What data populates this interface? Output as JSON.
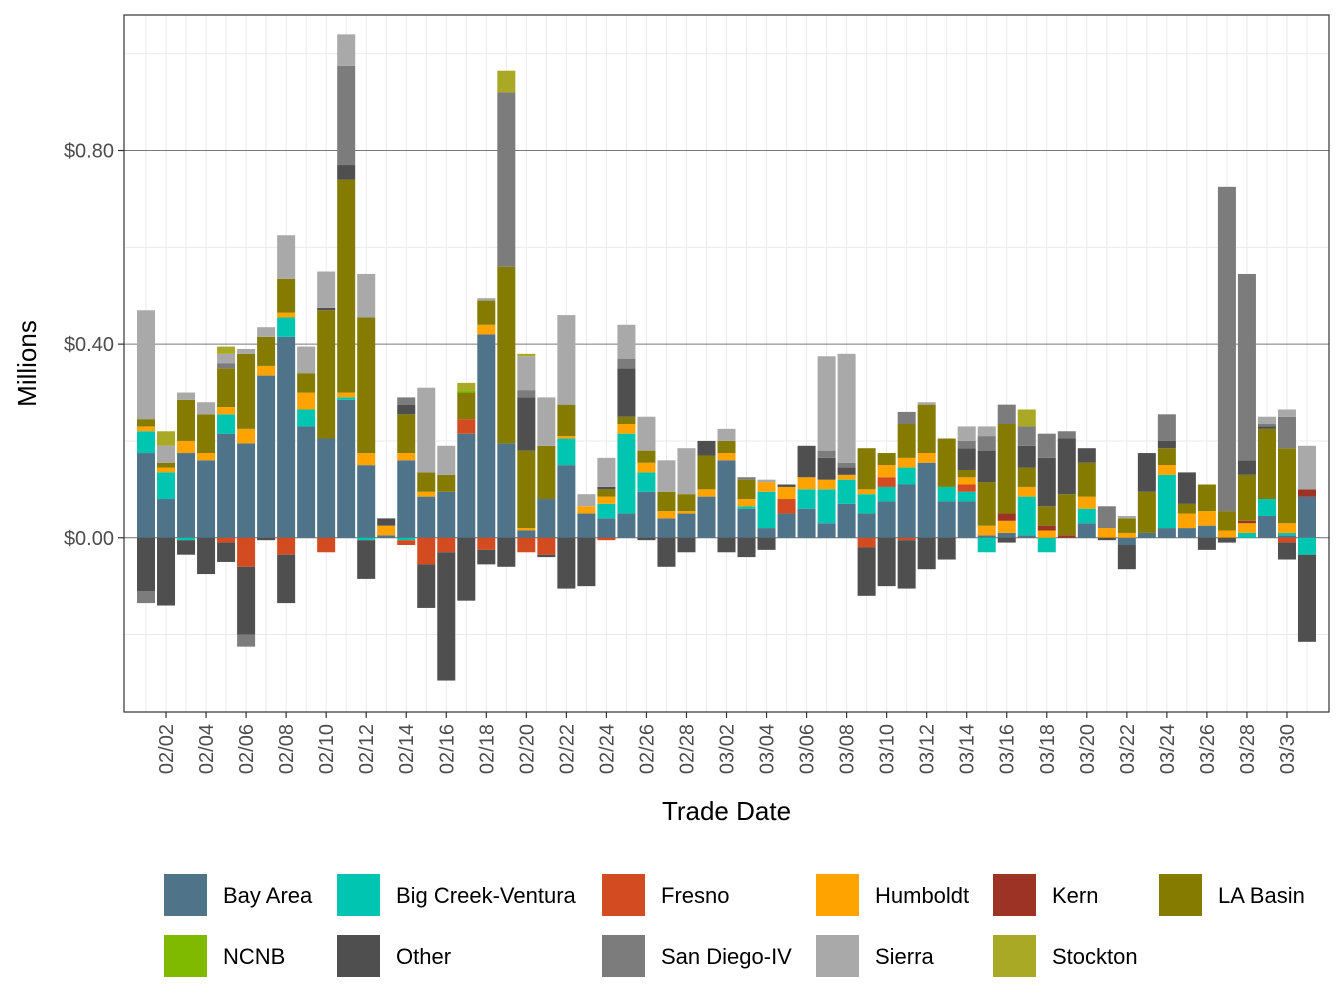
{
  "chart_data": {
    "type": "bar",
    "stacked": true,
    "title": "",
    "xlabel": "Trade Date",
    "ylabel": "Millions",
    "ylim": [
      -0.36,
      1.08
    ],
    "y_ticks": [
      0,
      0.4,
      0.8
    ],
    "y_tick_labels": [
      "$0.00",
      "$0.40",
      "$0.80"
    ],
    "grid": true,
    "legend_position": "bottom",
    "x_tick_labels": [
      "02/02",
      "02/04",
      "02/06",
      "02/08",
      "02/10",
      "02/12",
      "02/14",
      "02/16",
      "02/18",
      "02/20",
      "02/22",
      "02/24",
      "02/26",
      "02/28",
      "03/02",
      "03/04",
      "03/06",
      "03/08",
      "03/10",
      "03/12",
      "03/14",
      "03/16",
      "03/18",
      "03/20",
      "03/22",
      "03/24",
      "03/26",
      "03/28",
      "03/30"
    ],
    "categories": [
      "02/01",
      "02/02",
      "02/03",
      "02/04",
      "02/05",
      "02/06",
      "02/07",
      "02/08",
      "02/09",
      "02/10",
      "02/11",
      "02/12",
      "02/13",
      "02/14",
      "02/15",
      "02/16",
      "02/17",
      "02/18",
      "02/19",
      "02/20",
      "02/21",
      "02/22",
      "02/23",
      "02/24",
      "02/25",
      "02/26",
      "02/27",
      "02/28",
      "03/01",
      "03/02",
      "03/03",
      "03/04",
      "03/05",
      "03/06",
      "03/07",
      "03/08",
      "03/09",
      "03/10",
      "03/11",
      "03/12",
      "03/13",
      "03/14",
      "03/15",
      "03/16",
      "03/17",
      "03/18",
      "03/19",
      "03/20",
      "03/21",
      "03/22",
      "03/23",
      "03/24",
      "03/25",
      "03/26",
      "03/27",
      "03/28",
      "03/29",
      "03/30",
      "03/31"
    ],
    "series": [
      {
        "name": "Bay Area",
        "color": "#4f7489",
        "values": [
          0.175,
          0.08,
          0.175,
          0.16,
          0.215,
          0.195,
          0.335,
          0.415,
          0.23,
          0.205,
          0.285,
          0.15,
          0.005,
          0.16,
          0.085,
          0.095,
          0.215,
          0.42,
          0.195,
          0.015,
          0.08,
          0.15,
          0.05,
          0.04,
          0.05,
          0.095,
          0.04,
          0.05,
          0.085,
          0.16,
          0.06,
          0.02,
          0.05,
          0.06,
          0.03,
          0.07,
          0.05,
          0.075,
          0.11,
          0.155,
          0.075,
          0.075,
          0.005,
          0.01,
          0.005,
          0.0,
          0.0,
          0.03,
          0.0,
          -0.015,
          0.01,
          0.02,
          0.02,
          0.025,
          0.0,
          0.0,
          0.045,
          0.005,
          0.085
        ]
      },
      {
        "name": "Big Creek-Ventura",
        "color": "#00c5b0",
        "values": [
          0.045,
          0.055,
          -0.005,
          0.0,
          0.04,
          0.0,
          0.0,
          0.04,
          0.035,
          0.0,
          0.005,
          -0.005,
          0.0,
          -0.005,
          0.0,
          0.0,
          0.0,
          0.0,
          0.0,
          0.0,
          0.0,
          0.055,
          0.0,
          0.03,
          0.165,
          0.04,
          0.0,
          0.0,
          0.0,
          0.0,
          0.005,
          0.075,
          0.0,
          0.04,
          0.07,
          0.05,
          0.04,
          0.03,
          0.035,
          0.0,
          0.03,
          0.02,
          -0.03,
          0.0,
          0.08,
          -0.03,
          0.0,
          0.03,
          0.0,
          0.0,
          0.0,
          0.11,
          0.0,
          0.0,
          0.0,
          0.01,
          0.035,
          0.005,
          -0.035
        ]
      },
      {
        "name": "Fresno",
        "color": "#d24b21",
        "values": [
          0.0,
          0.0,
          0.0,
          0.0,
          -0.01,
          -0.06,
          0.0,
          -0.035,
          0.0,
          -0.03,
          0.0,
          0.0,
          0.0,
          -0.01,
          -0.055,
          -0.03,
          0.03,
          -0.025,
          0.0,
          -0.03,
          -0.035,
          0.0,
          0.0,
          -0.005,
          0.0,
          0.0,
          0.0,
          0.0,
          0.0,
          0.0,
          0.0,
          0.0,
          0.03,
          0.0,
          0.0,
          0.0,
          -0.02,
          0.02,
          -0.005,
          0.0,
          0.0,
          0.015,
          0.0,
          0.0,
          0.0,
          0.0,
          0.0,
          0.0,
          0.0,
          0.0,
          0.0,
          0.0,
          0.0,
          0.0,
          0.0,
          0.0,
          0.0,
          -0.01,
          0.0
        ]
      },
      {
        "name": "Humboldt",
        "color": "#ffa300",
        "values": [
          0.01,
          0.01,
          0.025,
          0.015,
          0.015,
          0.03,
          0.02,
          0.01,
          0.035,
          0.0,
          0.01,
          0.025,
          0.02,
          0.015,
          0.01,
          0.0,
          0.0,
          0.02,
          0.0,
          0.005,
          0.0,
          0.005,
          0.015,
          0.015,
          0.02,
          0.02,
          0.015,
          0.005,
          0.015,
          0.015,
          0.015,
          0.02,
          0.025,
          0.025,
          0.02,
          0.01,
          0.01,
          0.025,
          0.02,
          0.02,
          0.0,
          0.015,
          0.02,
          0.025,
          0.02,
          0.015,
          0.0,
          0.025,
          0.02,
          0.01,
          0.0,
          0.02,
          0.03,
          0.03,
          0.015,
          0.02,
          0.0,
          0.02,
          0.0
        ]
      },
      {
        "name": "Kern",
        "color": "#9c3325",
        "values": [
          0.0,
          0.0,
          0.0,
          0.0,
          0.0,
          0.0,
          0.0,
          0.0,
          0.0,
          0.0,
          0.0,
          0.0,
          0.0,
          0.0,
          0.0,
          0.0,
          0.0,
          0.0,
          0.0,
          0.0,
          0.0,
          0.0,
          0.0,
          0.0,
          0.0,
          0.0,
          0.0,
          0.0,
          0.0,
          0.0,
          0.0,
          0.0,
          0.0,
          0.0,
          0.0,
          0.0,
          0.0,
          0.0,
          0.0,
          0.0,
          0.0,
          0.0,
          0.0,
          0.015,
          0.0,
          0.01,
          0.005,
          0.0,
          0.0,
          0.0,
          0.0,
          0.0,
          0.0,
          0.0,
          0.0,
          0.005,
          0.0,
          0.0,
          0.015
        ]
      },
      {
        "name": "LA Basin",
        "color": "#847b00",
        "values": [
          0.015,
          0.01,
          0.085,
          0.08,
          0.08,
          0.155,
          0.06,
          0.07,
          0.04,
          0.265,
          0.44,
          0.28,
          0.0,
          0.08,
          0.04,
          0.035,
          0.055,
          0.05,
          0.365,
          0.16,
          0.11,
          0.065,
          0.0,
          0.015,
          0.015,
          0.025,
          0.04,
          0.035,
          0.07,
          0.025,
          0.04,
          0.0,
          0.0,
          0.0,
          0.0,
          0.0,
          0.085,
          0.025,
          0.07,
          0.1,
          0.1,
          0.015,
          0.09,
          0.185,
          0.04,
          0.04,
          0.085,
          0.07,
          0.0,
          0.03,
          0.085,
          0.035,
          0.02,
          0.055,
          0.04,
          0.095,
          0.145,
          0.155,
          0.0
        ]
      },
      {
        "name": "NCNB",
        "color": "#7fba00",
        "values": [
          0.0,
          0.0,
          0.0,
          0.0,
          0.0,
          0.0,
          0.0,
          0.0,
          0.0,
          0.0,
          0.0,
          0.0,
          0.0,
          0.0,
          0.0,
          0.0,
          0.005,
          0.0,
          0.0,
          0.0,
          0.0,
          0.0,
          0.0,
          0.0,
          0.0,
          0.0,
          0.0,
          0.0,
          0.0,
          0.0,
          0.0,
          0.0,
          0.0,
          0.0,
          0.0,
          0.0,
          0.0,
          0.0,
          0.0,
          0.0,
          0.0,
          0.0,
          0.0,
          0.0,
          0.0,
          0.0,
          0.0,
          0.0,
          0.0,
          0.0,
          0.0,
          0.0,
          0.0,
          0.0,
          0.0,
          0.0,
          0.0,
          0.0,
          0.0
        ]
      },
      {
        "name": "Other",
        "color": "#4f4f4f",
        "values": [
          -0.11,
          -0.14,
          -0.03,
          -0.075,
          -0.04,
          -0.14,
          -0.005,
          -0.1,
          0.0,
          0.005,
          0.03,
          -0.08,
          0.015,
          0.02,
          -0.09,
          -0.265,
          -0.13,
          -0.03,
          -0.06,
          0.11,
          -0.005,
          -0.105,
          -0.1,
          0.005,
          0.1,
          -0.005,
          -0.06,
          -0.03,
          0.03,
          -0.03,
          -0.04,
          -0.025,
          0.005,
          0.065,
          0.045,
          0.015,
          -0.1,
          -0.1,
          -0.1,
          -0.065,
          -0.045,
          0.045,
          0.065,
          -0.01,
          0.045,
          0.1,
          0.115,
          0.03,
          -0.005,
          -0.05,
          0.08,
          0.015,
          0.065,
          -0.025,
          -0.01,
          0.03,
          0.005,
          -0.035,
          -0.18
        ]
      },
      {
        "name": "San Diego-IV",
        "color": "#7c7c7c",
        "values": [
          -0.025,
          0.0,
          0.0,
          0.0,
          0.01,
          -0.025,
          0.0,
          0.0,
          0.0,
          0.0,
          0.205,
          0.0,
          0.0,
          0.015,
          0.0,
          0.0,
          0.0,
          0.0,
          0.36,
          0.015,
          0.0,
          0.0,
          0.0,
          0.0,
          0.02,
          0.0,
          0.0,
          0.0,
          0.0,
          0.0,
          0.005,
          0.0,
          0.0,
          0.0,
          0.015,
          0.01,
          0.0,
          0.0,
          0.025,
          0.0,
          0.0,
          0.015,
          0.03,
          0.04,
          0.04,
          0.05,
          0.015,
          0.0,
          0.045,
          0.0,
          0.0,
          0.055,
          0.0,
          0.0,
          0.67,
          0.385,
          0.005,
          0.065,
          0.0
        ]
      },
      {
        "name": "Sierra",
        "color": "#a9a9a9",
        "values": [
          0.225,
          0.035,
          0.015,
          0.025,
          0.02,
          0.01,
          0.02,
          0.09,
          0.055,
          0.075,
          0.065,
          0.09,
          0.0,
          0.0,
          0.175,
          0.06,
          0.0,
          0.005,
          0.0,
          0.07,
          0.1,
          0.185,
          0.025,
          0.06,
          0.07,
          0.07,
          0.065,
          0.095,
          0.0,
          0.025,
          0.0,
          0.005,
          0.0,
          0.0,
          0.195,
          0.225,
          0.0,
          0.0,
          0.0,
          0.005,
          0.0,
          0.03,
          0.02,
          0.0,
          0.0,
          0.0,
          0.0,
          0.0,
          0.0,
          0.005,
          0.0,
          0.0,
          0.0,
          0.0,
          0.0,
          0.0,
          0.015,
          0.015,
          0.09
        ]
      },
      {
        "name": "Stockton",
        "color": "#aaa925",
        "values": [
          0.0,
          0.03,
          0.0,
          0.0,
          0.015,
          0.0,
          0.0,
          0.0,
          0.0,
          0.0,
          0.0,
          0.0,
          0.0,
          0.0,
          0.0,
          0.0,
          0.015,
          0.0,
          0.045,
          0.005,
          0.0,
          0.0,
          0.0,
          0.0,
          0.0,
          0.0,
          0.0,
          0.0,
          0.0,
          0.0,
          0.0,
          0.0,
          0.0,
          0.0,
          0.0,
          0.0,
          0.0,
          0.0,
          0.0,
          0.0,
          0.0,
          0.0,
          0.0,
          0.0,
          0.035,
          0.0,
          0.0,
          0.0,
          0.0,
          0.0,
          0.0,
          0.0,
          0.0,
          0.0,
          0.0,
          0.0,
          0.0,
          0.0,
          0.0
        ]
      }
    ]
  }
}
